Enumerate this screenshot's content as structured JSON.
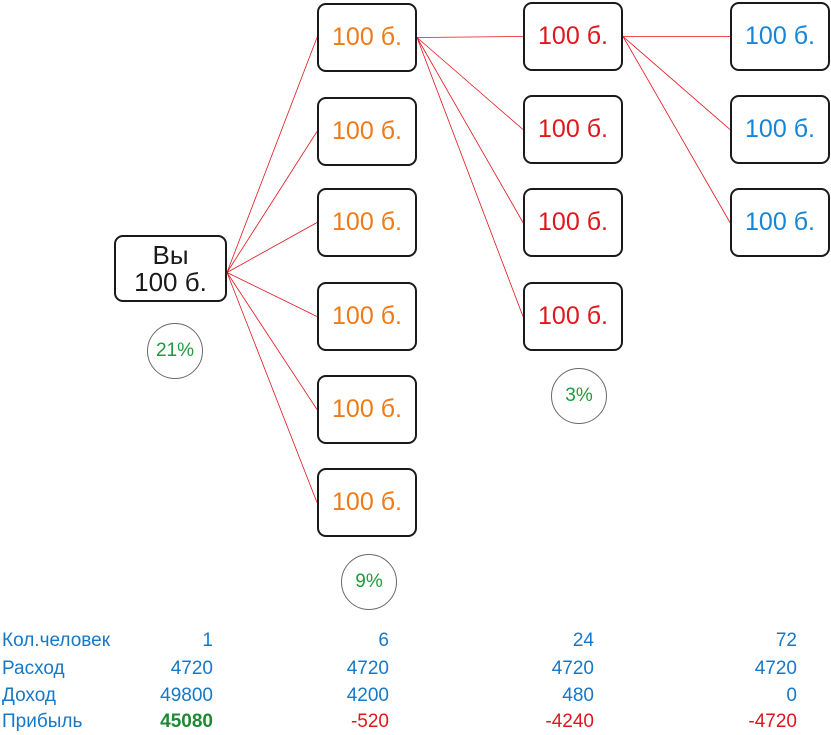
{
  "root": {
    "line1": "Вы",
    "line2": "100 б."
  },
  "level1_nodes": [
    "100 б.",
    "100 б.",
    "100 б.",
    "100 б.",
    "100 б.",
    "100 б."
  ],
  "level2_nodes": [
    "100 б.",
    "100 б.",
    "100 б.",
    "100 б."
  ],
  "level3_nodes": [
    "100 б.",
    "100 б.",
    "100 б."
  ],
  "percentages": {
    "level0": "21%",
    "level1": "9%",
    "level2": "3%"
  },
  "colors": {
    "root_text": "#1a1a1a",
    "level1_text": "#f07a16",
    "level2_text": "#e0161c",
    "level3_text": "#1585d8",
    "connector": "#e0161c",
    "percent_text": "#1f9a3c",
    "table_text": "#1578c8",
    "negative": "#e0161c",
    "positive": "#1f8a32"
  },
  "table": {
    "rows": [
      {
        "label": "Кол.человек",
        "values": [
          "1",
          "6",
          "24",
          "72"
        ]
      },
      {
        "label": "Расход",
        "values": [
          "4720",
          "4720",
          "4720",
          "4720"
        ]
      },
      {
        "label": "Доход",
        "values": [
          "49800",
          "4200",
          "480",
          "0"
        ]
      },
      {
        "label": "Прибыль",
        "values": [
          "45080",
          "-520",
          "-4240",
          "-4720"
        ]
      }
    ]
  }
}
